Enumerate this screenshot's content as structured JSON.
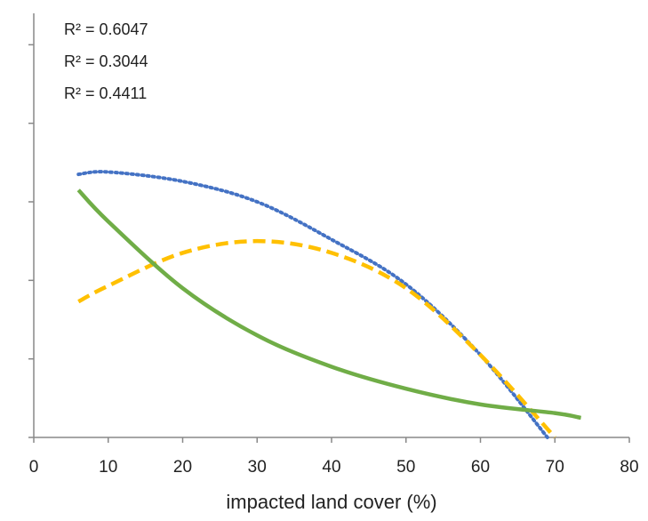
{
  "chart_data": {
    "type": "line",
    "x_label": "impacted land cover (%)",
    "annotations": [
      {
        "text": "R² = 0.6047",
        "color": "#4472c4"
      },
      {
        "text": "R² = 0.3044",
        "color": "#ffc000"
      },
      {
        "text": "R² = 0.4411",
        "color": "#70ad47"
      }
    ],
    "series": [
      {
        "color": "#4472c4",
        "style": "dotted",
        "x": [
          6,
          10,
          20,
          30,
          40,
          50,
          60,
          69
        ],
        "values": [
          3.35,
          3.38,
          3.26,
          3.0,
          2.52,
          1.95,
          1.05,
          0
        ]
      },
      {
        "color": "#ffc000",
        "style": "dashed",
        "x": [
          6,
          10,
          20,
          30,
          40,
          50,
          60,
          70
        ],
        "values": [
          1.73,
          1.93,
          2.35,
          2.5,
          2.35,
          1.9,
          1.05,
          0
        ]
      },
      {
        "color": "#70ad47",
        "style": "solid",
        "x": [
          6,
          10,
          20,
          30,
          40,
          50,
          60,
          70,
          73.5
        ],
        "values": [
          3.15,
          2.75,
          1.9,
          1.3,
          0.9,
          0.62,
          0.42,
          0.31,
          0.25
        ]
      }
    ],
    "xlim": [
      0,
      80
    ],
    "xticks": [
      0,
      10,
      20,
      30,
      40,
      50,
      60,
      70,
      80
    ],
    "ylim": [
      0,
      5.4
    ],
    "yticks": [
      0,
      1,
      2,
      3,
      4,
      5
    ]
  }
}
